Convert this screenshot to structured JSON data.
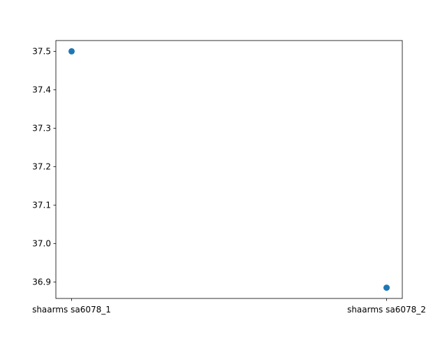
{
  "chart_data": {
    "type": "scatter",
    "categories": [
      "shaarms sa6078_1",
      "shaarms sa6078_2"
    ],
    "series": [
      {
        "values": [
          37.5,
          36.885
        ]
      }
    ],
    "yticks": [
      "36.9",
      "37.0",
      "37.1",
      "37.2",
      "37.3",
      "37.4",
      "37.5"
    ],
    "ylim": [
      36.857,
      37.528
    ],
    "grid": false,
    "legend": "none",
    "title": "",
    "xlabel": "",
    "ylabel": ""
  },
  "colors": {
    "marker": "#1f77b4",
    "axes": "#000000",
    "background": "#ffffff"
  }
}
